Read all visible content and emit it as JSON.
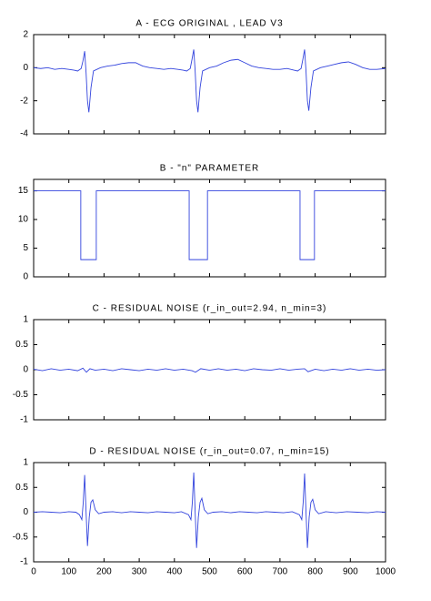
{
  "chart_data": [
    {
      "type": "line",
      "title": "A -  ECG ORIGINAL , LEAD V3",
      "xlim": [
        0,
        1000
      ],
      "ylim": [
        -4,
        2
      ],
      "yticks": [
        -4,
        -2,
        0,
        2
      ],
      "series": [
        {
          "color": "#3344dd",
          "x": [
            0,
            20,
            40,
            60,
            80,
            100,
            115,
            125,
            135,
            140,
            145,
            149,
            153,
            157,
            163,
            170,
            190,
            210,
            230,
            250,
            270,
            290,
            310,
            330,
            350,
            370,
            390,
            410,
            425,
            435,
            445,
            450,
            455,
            459,
            463,
            467,
            473,
            480,
            500,
            520,
            540,
            560,
            580,
            600,
            620,
            640,
            660,
            680,
            700,
            720,
            740,
            750,
            760,
            765,
            770,
            774,
            778,
            782,
            788,
            795,
            815,
            835,
            855,
            875,
            895,
            915,
            935,
            955,
            975,
            1000
          ],
          "values": [
            0,
            -0.05,
            0,
            -0.1,
            -0.05,
            -0.1,
            -0.15,
            -0.2,
            -0.05,
            0.4,
            1.0,
            -0.3,
            -2.0,
            -2.7,
            -1.2,
            -0.2,
            0.0,
            0.1,
            0.15,
            0.25,
            0.3,
            0.3,
            0.1,
            0.0,
            -0.05,
            -0.1,
            -0.05,
            -0.1,
            -0.15,
            -0.2,
            -0.05,
            0.5,
            1.1,
            -0.2,
            -2.0,
            -2.7,
            -1.2,
            -0.2,
            0.0,
            0.1,
            0.3,
            0.45,
            0.5,
            0.3,
            0.1,
            0.0,
            -0.05,
            -0.1,
            -0.1,
            -0.05,
            -0.15,
            -0.2,
            -0.05,
            0.5,
            1.1,
            -0.2,
            -2.0,
            -2.6,
            -1.2,
            -0.2,
            0.0,
            0.1,
            0.2,
            0.3,
            0.35,
            0.2,
            0.0,
            -0.1,
            -0.1,
            -0.05
          ]
        }
      ]
    },
    {
      "type": "line",
      "title": "B - \"n\" PARAMETER",
      "xlim": [
        0,
        1000
      ],
      "ylim": [
        0,
        17
      ],
      "yticks": [
        0,
        5,
        10,
        15
      ],
      "series": [
        {
          "color": "#3344dd",
          "x": [
            0,
            134,
            134,
            178,
            178,
            442,
            442,
            494,
            494,
            757,
            757,
            798,
            798,
            1000
          ],
          "values": [
            15,
            15,
            3,
            3,
            15,
            15,
            3,
            3,
            15,
            15,
            3,
            3,
            15,
            15
          ]
        }
      ]
    },
    {
      "type": "line",
      "title": "C -  RESIDUAL NOISE  (r_in_out=2.94,  n_min=3)",
      "xlim": [
        0,
        1000
      ],
      "ylim": [
        -1,
        1
      ],
      "yticks": [
        -1,
        -0.5,
        0,
        0.5,
        1
      ],
      "series": [
        {
          "color": "#3344dd",
          "x": [
            0,
            25,
            50,
            75,
            100,
            125,
            140,
            150,
            160,
            175,
            200,
            225,
            250,
            275,
            300,
            325,
            350,
            375,
            400,
            425,
            450,
            460,
            475,
            500,
            525,
            550,
            575,
            600,
            625,
            650,
            675,
            700,
            725,
            750,
            770,
            780,
            800,
            825,
            850,
            875,
            900,
            925,
            950,
            975,
            1000
          ],
          "values": [
            0.01,
            -0.02,
            0.02,
            -0.01,
            0.01,
            -0.02,
            0.03,
            -0.05,
            0.02,
            -0.01,
            0.01,
            -0.02,
            0.02,
            0.0,
            -0.02,
            0.01,
            -0.01,
            0.02,
            -0.01,
            0.01,
            -0.02,
            -0.05,
            0.02,
            -0.01,
            0.02,
            -0.01,
            0.01,
            -0.02,
            0.02,
            0.0,
            -0.01,
            0.02,
            -0.01,
            0.01,
            0.02,
            -0.04,
            0.01,
            -0.02,
            0.01,
            -0.01,
            0.02,
            -0.01,
            0.01,
            -0.01,
            0.0
          ]
        }
      ]
    },
    {
      "type": "line",
      "title": "D -  RESIDUAL NOISE  (r_in_out=0.07,  n_min=15)",
      "xlim": [
        0,
        1000
      ],
      "ylim": [
        -1,
        1
      ],
      "yticks": [
        -1,
        -0.5,
        0,
        0.5,
        1
      ],
      "xticks": [
        0,
        100,
        200,
        300,
        400,
        500,
        600,
        700,
        800,
        900,
        1000
      ],
      "series": [
        {
          "color": "#3344dd",
          "x": [
            0,
            25,
            50,
            75,
            100,
            120,
            130,
            137,
            141,
            145,
            149,
            153,
            158,
            163,
            168,
            175,
            185,
            200,
            225,
            250,
            275,
            300,
            325,
            350,
            375,
            400,
            420,
            440,
            447,
            451,
            455,
            459,
            463,
            468,
            473,
            478,
            485,
            495,
            510,
            535,
            560,
            585,
            610,
            635,
            660,
            685,
            710,
            735,
            755,
            762,
            766,
            770,
            774,
            778,
            783,
            788,
            793,
            800,
            810,
            830,
            860,
            890,
            920,
            950,
            975,
            1000
          ],
          "values": [
            0,
            0.01,
            0,
            -0.01,
            0.01,
            0,
            -0.05,
            -0.15,
            0.2,
            0.75,
            0,
            -0.68,
            -0.1,
            0.2,
            0.25,
            0.05,
            -0.03,
            0,
            0.01,
            -0.01,
            0.01,
            0,
            -0.01,
            0.01,
            0,
            -0.01,
            0.01,
            -0.05,
            -0.15,
            0.2,
            0.8,
            0,
            -0.72,
            -0.1,
            0.2,
            0.28,
            0.05,
            -0.03,
            0,
            0.01,
            -0.01,
            0.01,
            0,
            -0.01,
            0.01,
            0,
            -0.01,
            0.01,
            -0.05,
            -0.15,
            0.2,
            0.78,
            0,
            -0.72,
            -0.1,
            0.2,
            0.26,
            0.05,
            -0.03,
            0.01,
            -0.01,
            0.01,
            0,
            -0.01,
            0.01,
            0
          ]
        }
      ]
    }
  ]
}
